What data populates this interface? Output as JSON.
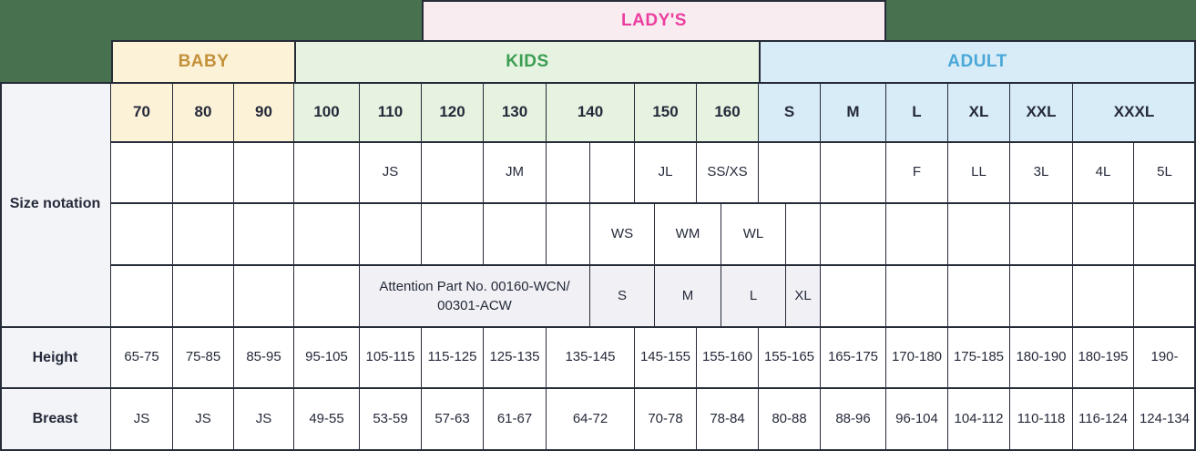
{
  "colors": {
    "background": "#48714F",
    "border": "#262B38",
    "cell_bg": "#FFFFFF",
    "cell_text": "#252A3A",
    "ladys_bg": "#F8ECF1",
    "ladys_text": "#EB3F9F",
    "baby_bg": "#FCF2D8",
    "baby_text": "#C3913A",
    "kids_bg": "#E6F3E1",
    "kids_text": "#3B9D51",
    "adult_bg": "#D8ECF7",
    "adult_text": "#49A8D8",
    "label_bg": "#F3F4F7",
    "muted_cell_bg": "#F1F1F5"
  },
  "chart_data": {
    "type": "table",
    "groups": {
      "ladys": {
        "label": "LADY'S",
        "covers_columns": [
          "120",
          "130",
          "140",
          "150",
          "160",
          "S",
          "M"
        ]
      },
      "baby": {
        "label": "BABY",
        "columns": [
          "70",
          "80",
          "90"
        ]
      },
      "kids": {
        "label": "KIDS",
        "columns": [
          "100",
          "110",
          "120",
          "130",
          "140",
          "150",
          "160"
        ]
      },
      "adult": {
        "label": "ADULT",
        "columns": [
          "S",
          "M",
          "L",
          "XL",
          "XXL",
          "XXXL"
        ]
      }
    },
    "row_labels": {
      "size_notation": "Size notation",
      "height": "Height",
      "breast": "Breast"
    },
    "size_notation": {
      "line1": {
        "kids_110": "JS",
        "kids_130": "JM",
        "kids_150": "JL",
        "kids_160": "SS/XS",
        "adult_l": "F",
        "adult_xl": "LL",
        "adult_xxl": "3L",
        "adult_xxxl_left": "4L",
        "adult_xxxl_right": "5L"
      },
      "line2": {
        "ws": "WS",
        "wm": "WM",
        "wl": "WL"
      },
      "line3": {
        "attention_note": "Attention Part No. 00160-WCN/\n00301-ACW",
        "s": "S",
        "m": "M",
        "l": "L",
        "xl": "XL"
      }
    },
    "height": [
      "65-75",
      "75-85",
      "85-95",
      "95-105",
      "105-115",
      "115-125",
      "125-135",
      "135-145",
      "145-155",
      "155-160",
      "155-165",
      "165-175",
      "170-180",
      "175-185",
      "180-190",
      "180-195",
      "190-"
    ],
    "breast": [
      "JS",
      "JS",
      "JS",
      "49-55",
      "53-59",
      "57-63",
      "61-67",
      "64-72",
      "70-78",
      "78-84",
      "80-88",
      "88-96",
      "96-104",
      "104-112",
      "110-118",
      "116-124",
      "124-134"
    ]
  }
}
